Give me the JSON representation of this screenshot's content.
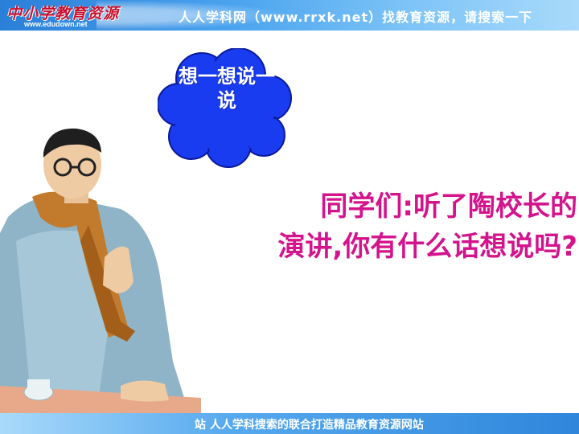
{
  "header": {
    "logo_text": "中小学教育资源",
    "logo_url": "www.edudown.net",
    "title": "人人学科网（www.rrxk.net）找教育资源，请搜索一下"
  },
  "cloud": {
    "text": "想一想说一说"
  },
  "question": {
    "line1": "同学们:听了陶校长的",
    "line2": "演讲,你有什么话想说吗?"
  },
  "footer": {
    "text": "站 人人学科搜索的联合打造精品教育资源网站"
  },
  "colors": {
    "header_blue": "#2a7fd8",
    "cloud_blue": "#1a3cf0",
    "question_magenta": "#d4148c",
    "logo_red": "#c8102e"
  }
}
